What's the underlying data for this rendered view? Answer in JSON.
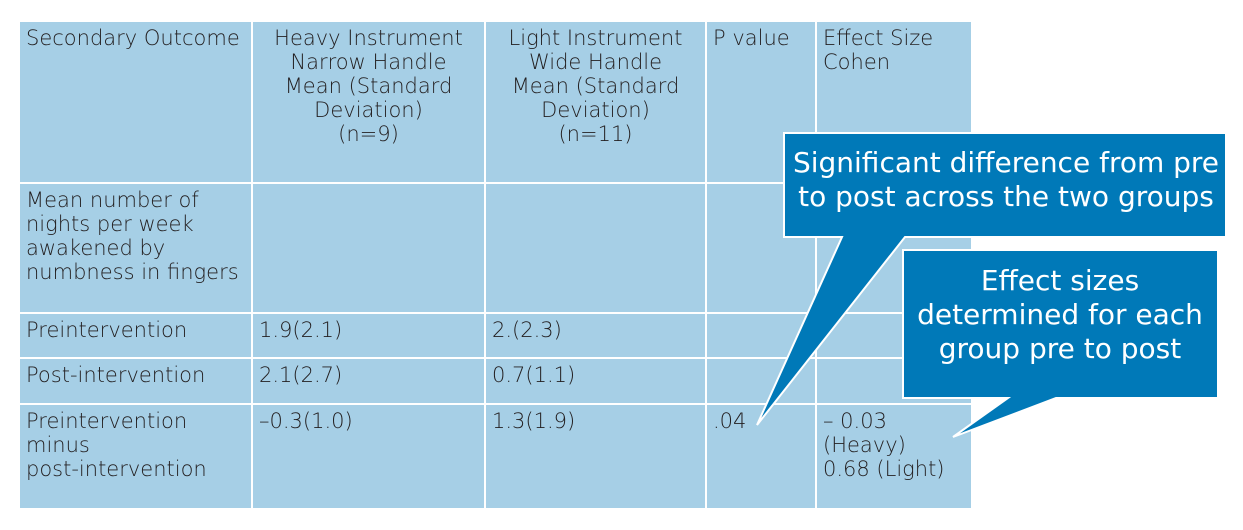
{
  "table": {
    "headers": [
      "Secondary Outcome",
      "Heavy Instrument\nNarrow Handle\nMean (Standard\nDeviation)\n(n=9)",
      "Light Instrument\nWide Handle\nMean (Standard\nDeviation)\n(n=11)",
      "P value",
      "Effect Size\nCohen"
    ],
    "rows": [
      {
        "cells": [
          "Mean number of\nnights per week\nawakened by\nnumbness in fingers",
          "",
          "",
          "",
          ""
        ]
      },
      {
        "cells": [
          "Preintervention",
          "1.9(2.1)",
          "2.(2.3)",
          "",
          ""
        ]
      },
      {
        "cells": [
          "Post-intervention",
          "2.1(2.7)",
          "0.7(1.1)",
          "",
          ""
        ]
      },
      {
        "cells": [
          "Preintervention minus\npost-intervention",
          "–0.3(1.0)",
          "1.3(1.9)",
          ".04",
          "– 0.03 (Heavy)\n0.68 (Light)"
        ]
      }
    ]
  },
  "callouts": {
    "significant": "Significant difference from pre\nto post across the two groups",
    "effect": "Effect sizes\ndetermined for each\ngroup pre to post",
    "color": "#0079b8"
  },
  "colors": {
    "table_fill": "#a6cfe6",
    "grid": "#ffffff",
    "text": "#231f20"
  }
}
